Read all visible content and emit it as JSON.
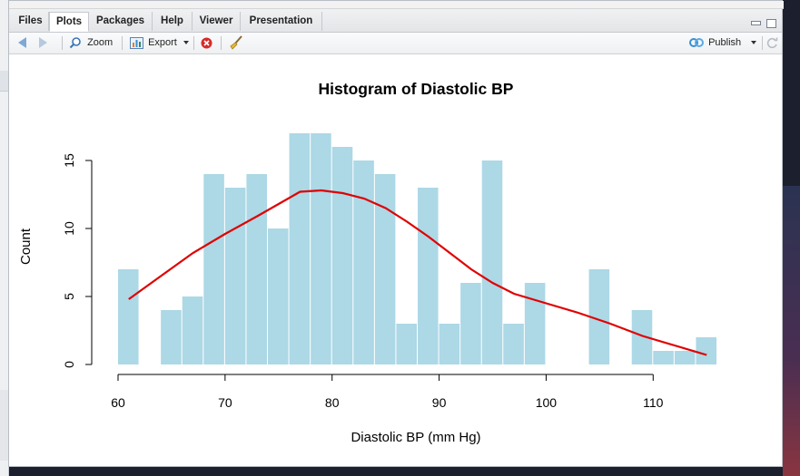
{
  "tabs": [
    {
      "label": "Files",
      "active": false
    },
    {
      "label": "Plots",
      "active": true
    },
    {
      "label": "Packages",
      "active": false
    },
    {
      "label": "Help",
      "active": false
    },
    {
      "label": "Viewer",
      "active": false
    },
    {
      "label": "Presentation",
      "active": false
    }
  ],
  "toolbar": {
    "back_icon": "arrow-left-icon",
    "forward_icon": "arrow-right-icon",
    "zoom_label": "Zoom",
    "export_label": "Export",
    "publish_label": "Publish"
  },
  "colors": {
    "bar": "#ADD8E6",
    "density": "#E00000",
    "accent": "#3a8fd0"
  },
  "chart_data": {
    "type": "bar",
    "title": "Histogram of Diastolic BP",
    "xlabel": "Diastolic BP (mm Hg)",
    "ylabel": "Count",
    "bin_width": 2,
    "bins": [
      {
        "x0": 60,
        "count": 7
      },
      {
        "x0": 62,
        "count": 0
      },
      {
        "x0": 64,
        "count": 4
      },
      {
        "x0": 66,
        "count": 5
      },
      {
        "x0": 68,
        "count": 14
      },
      {
        "x0": 70,
        "count": 13
      },
      {
        "x0": 72,
        "count": 14
      },
      {
        "x0": 74,
        "count": 10
      },
      {
        "x0": 76,
        "count": 17
      },
      {
        "x0": 78,
        "count": 17
      },
      {
        "x0": 80,
        "count": 16
      },
      {
        "x0": 82,
        "count": 15
      },
      {
        "x0": 84,
        "count": 14
      },
      {
        "x0": 86,
        "count": 3
      },
      {
        "x0": 88,
        "count": 13
      },
      {
        "x0": 90,
        "count": 3
      },
      {
        "x0": 92,
        "count": 6
      },
      {
        "x0": 94,
        "count": 15
      },
      {
        "x0": 96,
        "count": 3
      },
      {
        "x0": 98,
        "count": 6
      },
      {
        "x0": 100,
        "count": 0
      },
      {
        "x0": 102,
        "count": 0
      },
      {
        "x0": 104,
        "count": 7
      },
      {
        "x0": 106,
        "count": 0
      },
      {
        "x0": 108,
        "count": 4
      },
      {
        "x0": 110,
        "count": 1
      },
      {
        "x0": 112,
        "count": 1
      },
      {
        "x0": 114,
        "count": 2
      }
    ],
    "density_curve": [
      [
        61,
        4.8
      ],
      [
        64,
        6.5
      ],
      [
        67,
        8.2
      ],
      [
        70,
        9.6
      ],
      [
        73,
        10.9
      ],
      [
        75,
        11.8
      ],
      [
        77,
        12.7
      ],
      [
        79,
        12.8
      ],
      [
        81,
        12.6
      ],
      [
        83,
        12.2
      ],
      [
        85,
        11.5
      ],
      [
        87,
        10.5
      ],
      [
        89,
        9.4
      ],
      [
        91,
        8.2
      ],
      [
        93,
        7.0
      ],
      [
        95,
        6.0
      ],
      [
        97,
        5.2
      ],
      [
        100,
        4.5
      ],
      [
        103,
        3.8
      ],
      [
        106,
        3.0
      ],
      [
        109,
        2.1
      ],
      [
        112,
        1.4
      ],
      [
        115,
        0.7
      ]
    ],
    "xlim": [
      60,
      116
    ],
    "ylim": [
      0,
      17
    ],
    "xticks": [
      60,
      70,
      80,
      90,
      100,
      110
    ],
    "yticks": [
      0,
      5,
      10,
      15
    ]
  }
}
